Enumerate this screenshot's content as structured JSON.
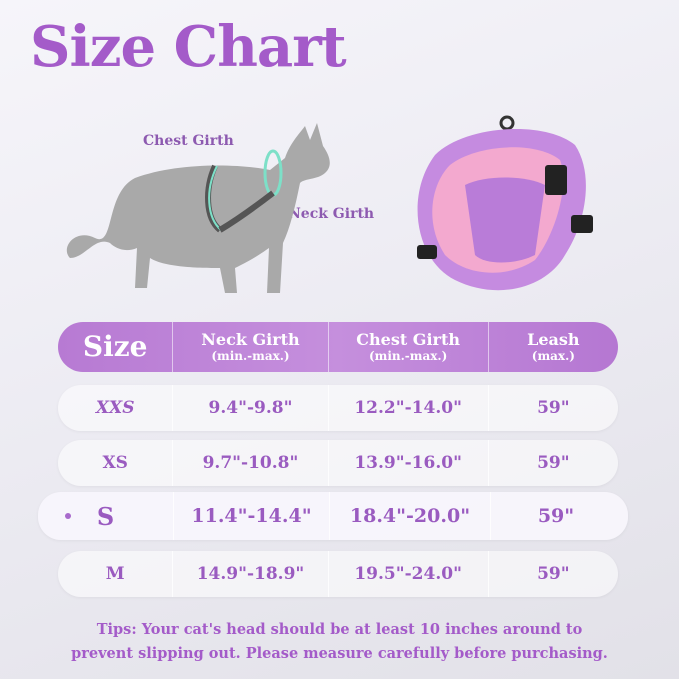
{
  "title": "Size Chart",
  "diagram": {
    "chest_label": "Chest Girth",
    "neck_label": "Neck Girth"
  },
  "table": {
    "headers": [
      {
        "main": "Size",
        "sub": ""
      },
      {
        "main": "Neck Girth",
        "sub": "(min.-max.)"
      },
      {
        "main": "Chest Girth",
        "sub": "(min.-max.)"
      },
      {
        "main": "Leash",
        "sub": "(max.)"
      }
    ],
    "rows": [
      {
        "size": "XXS",
        "neck": "9.4\"-9.8\"",
        "chest": "12.2\"-14.0\"",
        "leash": "59\""
      },
      {
        "size": "XS",
        "neck": "9.7\"-10.8\"",
        "chest": "13.9\"-16.0\"",
        "leash": "59\""
      },
      {
        "size": "S",
        "neck": "11.4\"-14.4\"",
        "chest": "18.4\"-20.0\"",
        "leash": "59\"",
        "highlighted": true
      },
      {
        "size": "M",
        "neck": "14.9\"-18.9\"",
        "chest": "19.5\"-24.0\"",
        "leash": "59\""
      }
    ]
  },
  "tips": {
    "line1": "Tips: Your cat's head should be at least 10 inches around to",
    "line2": "prevent slipping out. Please measure carefully before purchasing."
  },
  "colors": {
    "accent": "#a45bc9",
    "header": "#c08ad9",
    "harness": "#c58be0",
    "cat": "#a9a9a9",
    "measure": "#7de0c8"
  }
}
